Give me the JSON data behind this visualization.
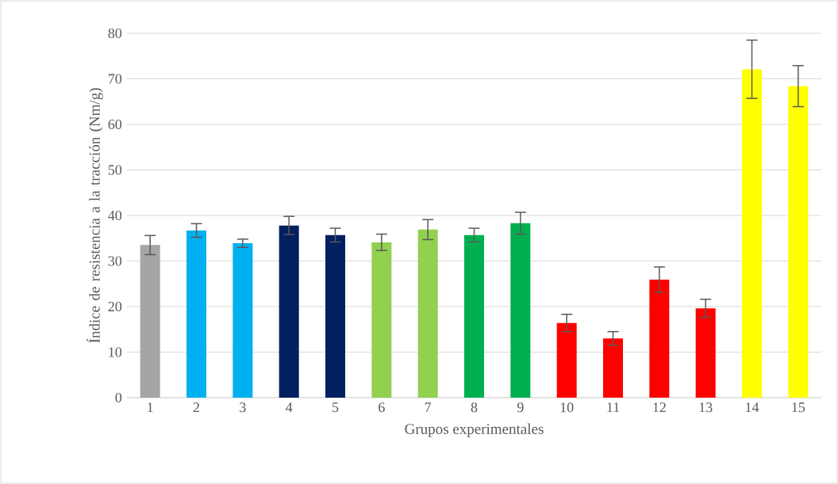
{
  "chart_data": {
    "type": "bar",
    "xlabel": "Grupos experimentales",
    "ylabel": "Índice de resistencia a la tracción (Nm/g)",
    "categories": [
      "1",
      "2",
      "3",
      "4",
      "5",
      "6",
      "7",
      "8",
      "9",
      "10",
      "11",
      "12",
      "13",
      "14",
      "15"
    ],
    "values": [
      33.5,
      36.7,
      33.9,
      37.8,
      35.7,
      34.1,
      36.9,
      35.7,
      38.3,
      16.4,
      13.0,
      25.9,
      19.6,
      72.1,
      68.4
    ],
    "errors": [
      2.1,
      1.5,
      0.9,
      2.0,
      1.5,
      1.8,
      2.2,
      1.5,
      2.4,
      1.9,
      1.5,
      2.8,
      2.0,
      6.4,
      4.5
    ],
    "colors": [
      "#a5a5a5",
      "#00b0f0",
      "#00b0f0",
      "#002060",
      "#002060",
      "#92d050",
      "#92d050",
      "#00b050",
      "#00b050",
      "#ff0000",
      "#ff0000",
      "#ff0000",
      "#ff0000",
      "#ffff00",
      "#ffff00"
    ],
    "ylim": [
      0,
      80
    ],
    "yticks": [
      0,
      10,
      20,
      30,
      40,
      50,
      60,
      70,
      80
    ],
    "grid": "y"
  }
}
